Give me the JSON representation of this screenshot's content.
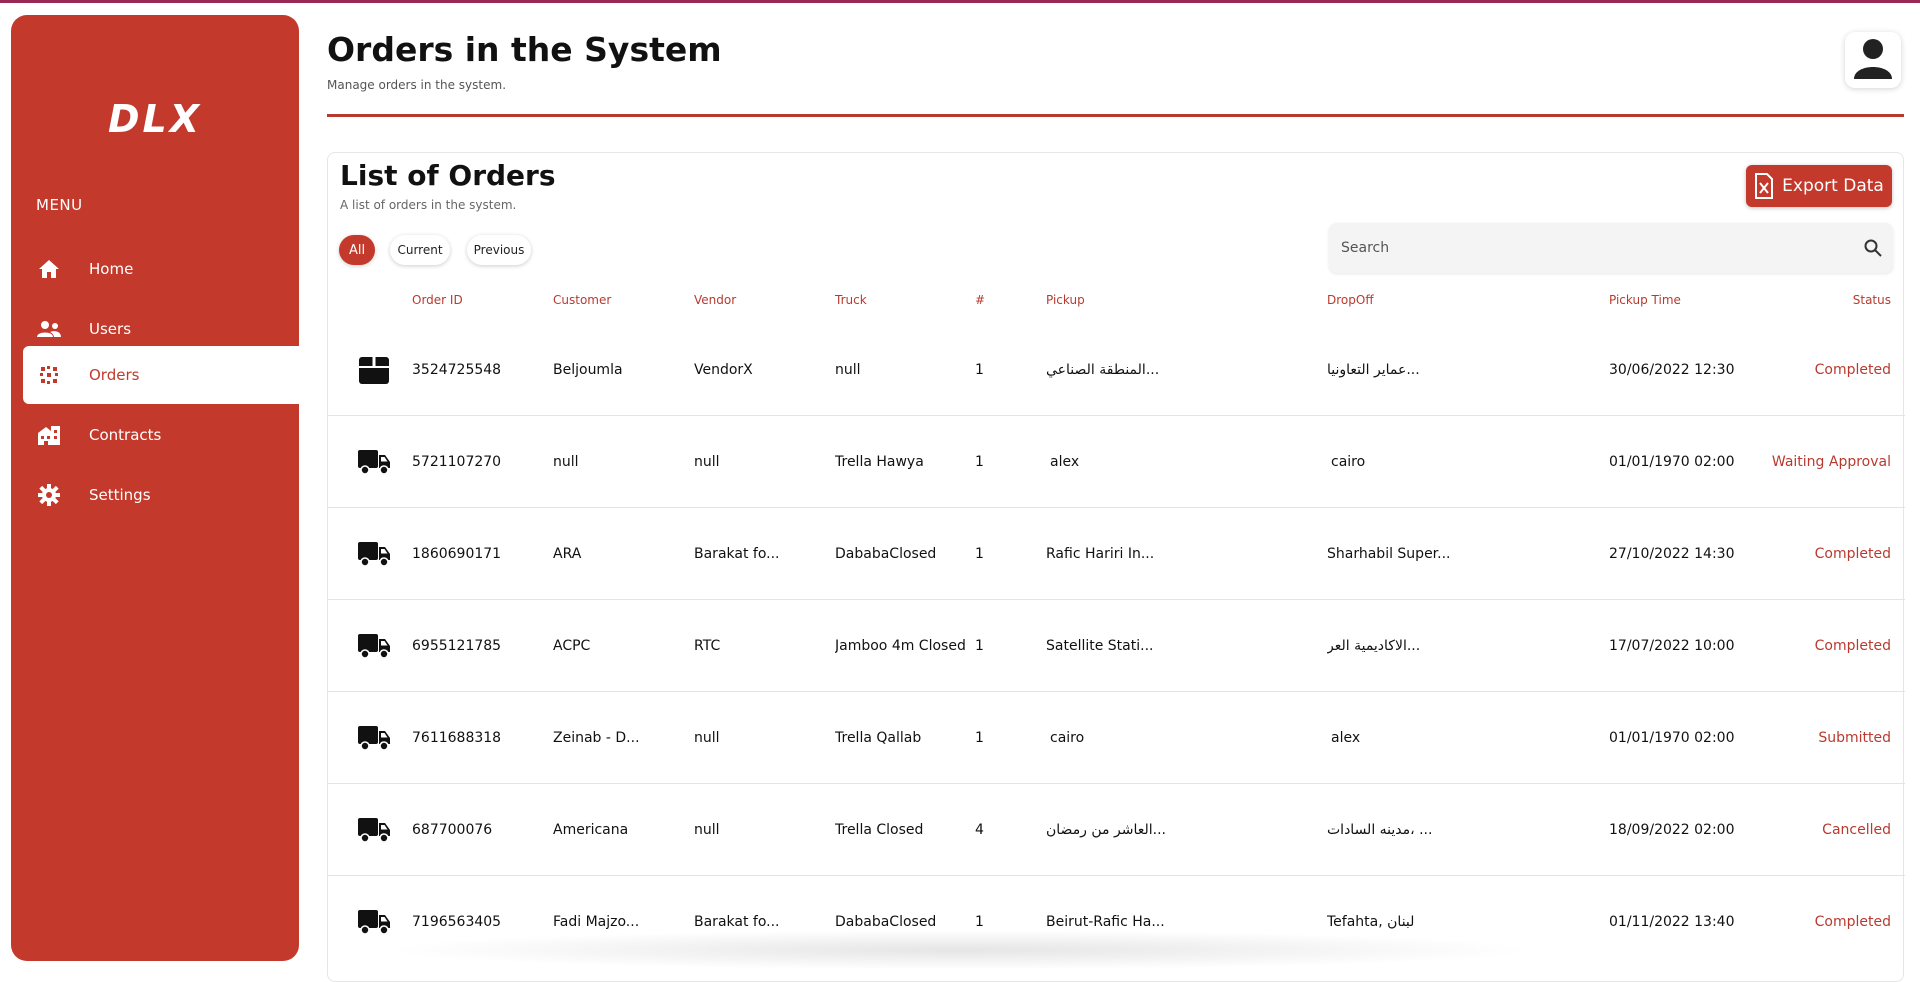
{
  "sidebar": {
    "logo": "DLX",
    "menu_label": "MENU",
    "items": [
      {
        "label": "Home",
        "icon": "home-icon"
      },
      {
        "label": "Users",
        "icon": "users-icon"
      },
      {
        "label": "Orders",
        "icon": "orders-icon"
      },
      {
        "label": "Contracts",
        "icon": "building-icon"
      },
      {
        "label": "Settings",
        "icon": "gear-icon"
      }
    ],
    "active_item": "Orders"
  },
  "header": {
    "title": "Orders in the System",
    "subtitle": "Manage orders in the system."
  },
  "card": {
    "title": "List of Orders",
    "subtitle": "A list of orders in the system.",
    "export_label": "Export Data",
    "filters": [
      "All",
      "Current",
      "Previous"
    ],
    "active_filter": "All",
    "search_placeholder": "Search"
  },
  "table": {
    "columns": [
      "Order ID",
      "Customer",
      "Vendor",
      "Truck",
      "#",
      "Pickup",
      "DropOff",
      "Pickup Time",
      "Status"
    ],
    "rows": [
      {
        "type_icon": "package-icon",
        "order_id": "3524725548",
        "customer": "Beljoumla",
        "vendor": "VendorX",
        "truck": "null",
        "count": "1",
        "pickup": "المنطقة الصناعي...",
        "dropoff": "عماير التعاونيا...",
        "pickup_time": "30/06/2022 12:30",
        "status": "Completed"
      },
      {
        "type_icon": "truck-icon",
        "order_id": "5721107270",
        "customer": "null",
        "vendor": "null",
        "truck": "Trella Hawya",
        "count": "1",
        "pickup": "alex",
        "dropoff": "cairo",
        "pickup_time": "01/01/1970 02:00",
        "status": "Waiting Approval"
      },
      {
        "type_icon": "truck-icon",
        "order_id": "1860690171",
        "customer": "ARA",
        "vendor": "Barakat fo...",
        "truck": "DababaClosed",
        "count": "1",
        "pickup": "Rafic Hariri In...",
        "dropoff": "Sharhabil Super...",
        "pickup_time": "27/10/2022 14:30",
        "status": "Completed"
      },
      {
        "type_icon": "truck-icon",
        "order_id": "6955121785",
        "customer": "ACPC",
        "vendor": "RTC",
        "truck": "Jamboo 4m Closed",
        "count": "1",
        "pickup": "Satellite Stati...",
        "dropoff": "الاكاديمية العر...",
        "pickup_time": "17/07/2022 10:00",
        "status": "Completed"
      },
      {
        "type_icon": "truck-icon",
        "order_id": "7611688318",
        "customer": "Zeinab - D...",
        "vendor": "null",
        "truck": "Trella Qallab",
        "count": "1",
        "pickup": "cairo",
        "dropoff": "alex",
        "pickup_time": "01/01/1970 02:00",
        "status": "Submitted"
      },
      {
        "type_icon": "truck-icon",
        "order_id": "687700076",
        "customer": "Americana",
        "vendor": "null",
        "truck": "Trella Closed",
        "count": "4",
        "pickup": "العاشر من رمضان...",
        "dropoff": "مدينه السادات، ...",
        "pickup_time": "18/09/2022 02:00",
        "status": "Cancelled"
      },
      {
        "type_icon": "truck-icon",
        "order_id": "7196563405",
        "customer": "Fadi Majzo...",
        "vendor": "Barakat fo...",
        "truck": "DababaClosed",
        "count": "1",
        "pickup": "Beirut-Rafic Ha...",
        "dropoff": "Tefahta, لبنان",
        "pickup_time": "01/11/2022 13:40",
        "status": "Completed"
      }
    ]
  },
  "colors": {
    "accent": "#c3392b",
    "status_text": "#b83a2f"
  }
}
